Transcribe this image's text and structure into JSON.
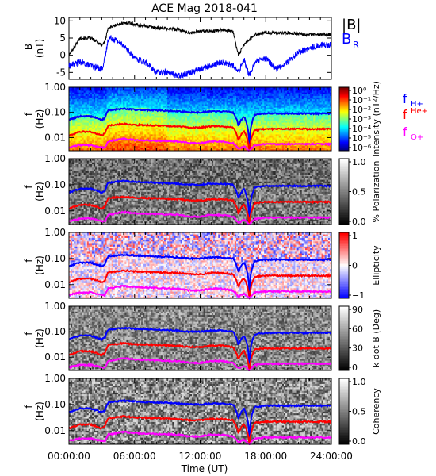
{
  "title": "ACE Mag 2018-041",
  "xlabel": "Time (UT)",
  "time_ticks": [
    "00:00:00",
    "06:00:00",
    "12:00:00",
    "18:00:00",
    "24:00:00"
  ],
  "colors": {
    "B_total": "#000000",
    "B_R": "#0000ff",
    "f_H": "#0000ff",
    "f_He": "#ff0000",
    "f_O": "#ff00ff"
  },
  "chart_data": [
    {
      "type": "line",
      "panel": "magnetic-field",
      "ylabel_top": "B",
      "ylabel_bottom": "(nT)",
      "ylim": [
        -7,
        11
      ],
      "yticks": [
        -5,
        0,
        5,
        10
      ],
      "xlim_hours": [
        0,
        24
      ],
      "legend": {
        "placement": "right",
        "entries": [
          "|B|",
          "B_R"
        ]
      },
      "legend_main": [
        "|B|",
        "B"
      ],
      "legend_sub": [
        "",
        "R"
      ],
      "series": [
        {
          "name": "|B|",
          "x": [
            0,
            1,
            2,
            3,
            3.3,
            3.6,
            4.5,
            5.5,
            6,
            8,
            10,
            11,
            12,
            13,
            14,
            15,
            15.5,
            16,
            17,
            18,
            20,
            22,
            24
          ],
          "y": [
            0,
            5,
            5,
            3,
            4,
            8,
            9,
            9.5,
            9,
            8,
            7.5,
            6.5,
            7,
            7,
            7.5,
            7,
            0,
            3,
            6,
            6.5,
            6.5,
            6,
            6
          ]
        },
        {
          "name": "B_R",
          "x": [
            0,
            1,
            2,
            3,
            3.3,
            3.6,
            4,
            5,
            6,
            7,
            8,
            9,
            10,
            11,
            12,
            13,
            14,
            15,
            15.5,
            16,
            16.5,
            17,
            18,
            19,
            20,
            21,
            22,
            23,
            24
          ],
          "y": [
            -3,
            -2,
            -3,
            -4,
            -1,
            5,
            5,
            3,
            -1,
            -2,
            -5,
            -5,
            -6,
            -5,
            -4,
            -3,
            -2,
            -3,
            -5,
            -1,
            -6,
            -2,
            -1,
            -4,
            -2,
            1,
            2,
            3,
            3
          ]
        }
      ]
    },
    {
      "type": "heatmap",
      "panel": "power-spectrum",
      "ylabel_top": "f",
      "ylabel_bottom": "(Hz)",
      "yscale": "log",
      "ylim": [
        0.003,
        1.0
      ],
      "ytick_labels": [
        "1.00",
        "0.10",
        "0.01"
      ],
      "colorbar": {
        "label": "Intensity (nT²/Hz)",
        "scale": "log",
        "range": [
          1e-06,
          1
        ],
        "ticks": [
          "10⁰",
          "10⁻¹",
          "10⁻²",
          "10⁻³",
          "10⁻⁴",
          "10⁻⁵",
          "10⁻⁶"
        ]
      },
      "series": [
        "f_H+",
        "f_He+",
        "f_O+"
      ]
    },
    {
      "type": "heatmap",
      "panel": "polarization",
      "ylabel_top": "f",
      "ylabel_bottom": "(Hz)",
      "yscale": "log",
      "ylim": [
        0.003,
        1.0
      ],
      "ytick_labels": [
        "1.00",
        "0.10",
        "0.01"
      ],
      "colorbar": {
        "label": "% Polarization",
        "range": [
          0,
          1
        ],
        "ticks": [
          "1.0",
          "0.5",
          "0.0"
        ]
      }
    },
    {
      "type": "heatmap",
      "panel": "ellipticity",
      "ylabel_top": "f",
      "ylabel_bottom": "(Hz)",
      "yscale": "log",
      "ylim": [
        0.003,
        1.0
      ],
      "ytick_labels": [
        "1.00",
        "0.10",
        "0.01"
      ],
      "colorbar": {
        "label": "Ellipticity",
        "range": [
          -1,
          1
        ],
        "ticks": [
          "1",
          "0",
          "−1"
        ]
      }
    },
    {
      "type": "heatmap",
      "panel": "k-dot-b",
      "ylabel_top": "f",
      "ylabel_bottom": "(Hz)",
      "yscale": "log",
      "ylim": [
        0.003,
        1.0
      ],
      "ytick_labels": [
        "1.00",
        "0.10",
        "0.01"
      ],
      "colorbar": {
        "label": "k dot B (Deg)",
        "range": [
          0,
          90
        ],
        "ticks": [
          "90",
          "60",
          "30",
          "0"
        ]
      }
    },
    {
      "type": "heatmap",
      "panel": "coherency",
      "ylabel_top": "f",
      "ylabel_bottom": "(Hz)",
      "yscale": "log",
      "ylim": [
        0.003,
        1.0
      ],
      "ytick_labels": [
        "1.00",
        "0.10",
        "0.01"
      ],
      "colorbar": {
        "label": "Coherency",
        "range": [
          0,
          1
        ],
        "ticks": [
          "1.0",
          "0.5",
          "0.0"
        ]
      }
    }
  ],
  "gyrofrequencies": {
    "labels_main": [
      "f",
      "f",
      "f"
    ],
    "labels_sub": [
      "H+",
      "He+",
      "O+"
    ],
    "x_hours": [
      0,
      1,
      2,
      3,
      3.3,
      3.6,
      5,
      6,
      8,
      10,
      11,
      12,
      13,
      14,
      15,
      15.5,
      16,
      16.5,
      17,
      18,
      20,
      22,
      24
    ],
    "f_H": [
      0.05,
      0.07,
      0.07,
      0.05,
      0.06,
      0.12,
      0.14,
      0.13,
      0.12,
      0.11,
      0.1,
      0.1,
      0.11,
      0.11,
      0.1,
      0.03,
      0.07,
      0.004,
      0.08,
      0.09,
      0.09,
      0.09,
      0.09
    ],
    "f_He": [
      0.012,
      0.017,
      0.017,
      0.012,
      0.015,
      0.03,
      0.035,
      0.032,
      0.03,
      0.028,
      0.025,
      0.025,
      0.028,
      0.028,
      0.025,
      0.008,
      0.018,
      0.003,
      0.02,
      0.022,
      0.022,
      0.022,
      0.022
    ],
    "f_O": [
      0.004,
      0.005,
      0.005,
      0.004,
      0.004,
      0.007,
      0.009,
      0.008,
      0.0075,
      0.007,
      0.006,
      0.006,
      0.007,
      0.007,
      0.006,
      0.0035,
      0.0045,
      0.003,
      0.005,
      0.0055,
      0.0055,
      0.0055,
      0.0055
    ]
  }
}
